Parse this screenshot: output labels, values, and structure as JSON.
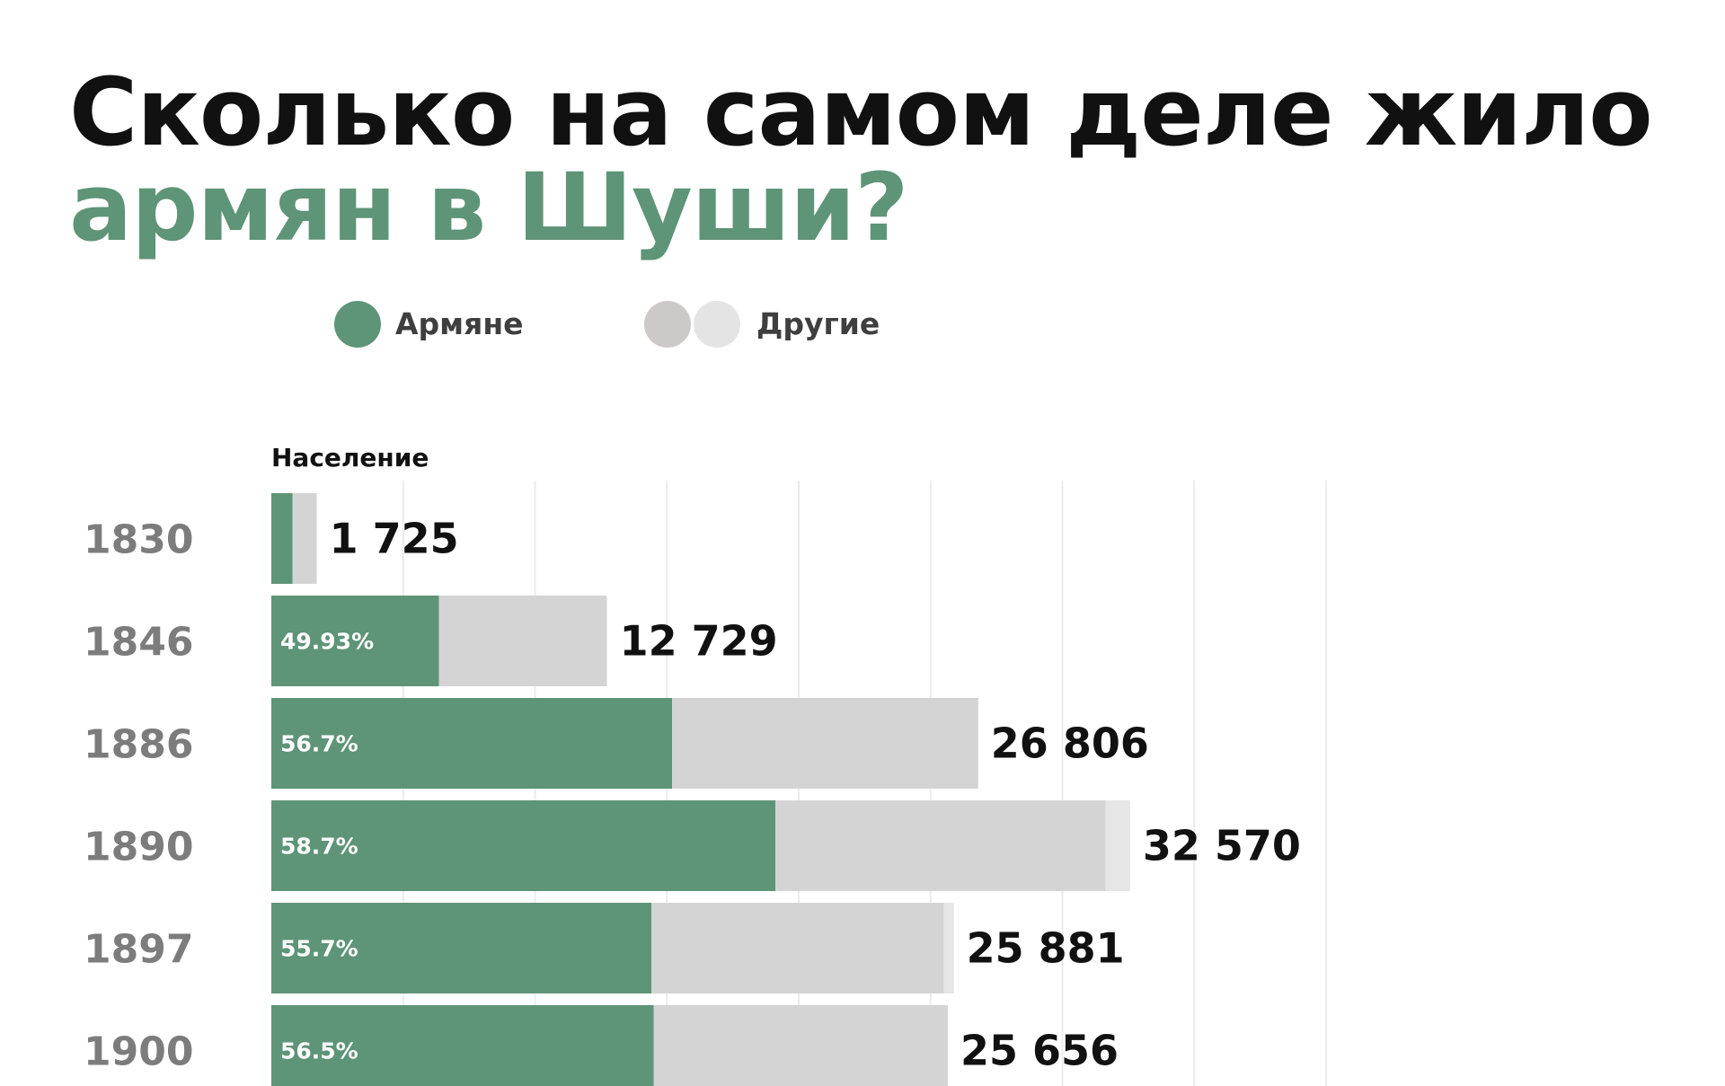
{
  "title": {
    "line1": "Сколько на самом деле жило",
    "line2": "армян в Шуши?"
  },
  "legend": {
    "armenians": "Армяне",
    "others": "Другие"
  },
  "colors": {
    "armenians": "#5e9477",
    "others": "#d4d4d4",
    "others_light": "#e6e6e6",
    "legend_others_dark": "#cdc9c9",
    "legend_others_light": "#e4e4e4",
    "gridline": "#ececec",
    "title_dark": "#111111",
    "year_text": "#7c7c7c"
  },
  "chart_data": {
    "type": "bar",
    "orientation": "horizontal",
    "stacked": true,
    "xlabel": "Население",
    "categories": [
      "1830",
      "1846",
      "1886",
      "1890",
      "1897",
      "1900"
    ],
    "totals": [
      1725,
      12729,
      26806,
      32570,
      25881,
      25656
    ],
    "total_labels": [
      "1 725",
      "12 729",
      "26 806",
      "32 570",
      "25 881",
      "25 656"
    ],
    "percent_labels": [
      "",
      "49.93%",
      "56.7%",
      "58.7%",
      "55.7%",
      "56.5%"
    ],
    "series": [
      {
        "name": "Армяне",
        "values": [
          800,
          6356,
          15199,
          19119,
          14416,
          14496
        ]
      },
      {
        "name": "Другие",
        "values": [
          925,
          6373,
          11607,
          12524,
          11091,
          11160
        ]
      },
      {
        "name": "",
        "values": [
          0,
          0,
          0,
          927,
          374,
          0
        ]
      }
    ],
    "xlim": [
      0,
      40000
    ],
    "grid": true
  }
}
